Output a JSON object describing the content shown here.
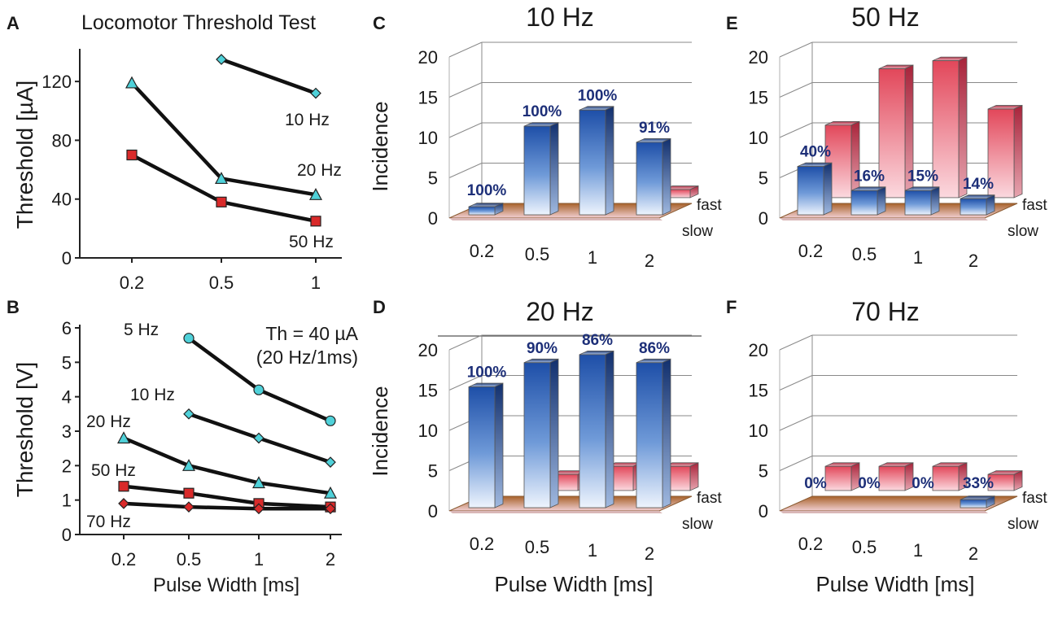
{
  "chart_data": [
    {
      "panel": "A",
      "type": "line",
      "title": "Locomotor Threshold Test",
      "xlabel": "",
      "ylabel": "Threshold [µA]",
      "categories": [
        "0.2",
        "0.5",
        "1"
      ],
      "yticks": [
        "0",
        "40",
        "80",
        "120"
      ],
      "ylim": [
        0,
        140
      ],
      "series": [
        {
          "name": "10 Hz",
          "marker": "diamond",
          "color": "#4fd1d9",
          "values": [
            null,
            135,
            112
          ]
        },
        {
          "name": "20 Hz",
          "marker": "triangle",
          "color": "#4fd1d9",
          "values": [
            119,
            54,
            43
          ]
        },
        {
          "name": "50 Hz",
          "marker": "square",
          "color": "#d92a2a",
          "values": [
            70,
            38,
            25
          ]
        }
      ]
    },
    {
      "panel": "B",
      "type": "line",
      "title": "",
      "xlabel": "Pulse Width [ms]",
      "ylabel": "Threshold [V]",
      "annotation": [
        "Th = 40 µA",
        "(20 Hz/1ms)"
      ],
      "categories": [
        "0.2",
        "0.5",
        "1",
        "2"
      ],
      "yticks": [
        "0",
        "1",
        "2",
        "3",
        "4",
        "5",
        "6"
      ],
      "ylim": [
        0,
        6
      ],
      "series": [
        {
          "name": "5 Hz",
          "marker": "circle",
          "color": "#4fd1d9",
          "values": [
            null,
            5.7,
            4.2,
            3.3
          ]
        },
        {
          "name": "10 Hz",
          "marker": "diamond",
          "color": "#4fd1d9",
          "values": [
            null,
            3.5,
            2.8,
            2.1
          ]
        },
        {
          "name": "20 Hz",
          "marker": "triangle",
          "color": "#4fd1d9",
          "values": [
            2.8,
            2.0,
            1.5,
            1.2
          ]
        },
        {
          "name": "50 Hz",
          "marker": "square",
          "color": "#d92a2a",
          "values": [
            1.4,
            1.2,
            0.9,
            0.8
          ]
        },
        {
          "name": "70 Hz",
          "marker": "diamond",
          "color": "#d92a2a",
          "values": [
            0.9,
            0.8,
            0.75,
            0.75
          ]
        }
      ]
    },
    {
      "panel": "C",
      "type": "bar",
      "title": "10 Hz",
      "xlabel": "",
      "ylabel": "Incidence",
      "categories": [
        "0.2",
        "0.5",
        "1",
        "2"
      ],
      "yticks": [
        "0",
        "5",
        "10",
        "15",
        "20"
      ],
      "ylim": [
        0,
        20
      ],
      "depth_labels": [
        "fast",
        "slow"
      ],
      "series": [
        {
          "name": "slow",
          "values": [
            1,
            11,
            13,
            9
          ]
        },
        {
          "name": "fast",
          "values": [
            0,
            0,
            0,
            1
          ]
        }
      ],
      "percent_labels": [
        "100%",
        "100%",
        "100%",
        "91%"
      ]
    },
    {
      "panel": "D",
      "type": "bar",
      "title": "20 Hz",
      "xlabel": "Pulse Width [ms]",
      "ylabel": "Incidence",
      "categories": [
        "0.2",
        "0.5",
        "1",
        "2"
      ],
      "yticks": [
        "0",
        "5",
        "10",
        "15",
        "20"
      ],
      "ylim": [
        0,
        20
      ],
      "depth_labels": [
        "fast",
        "slow"
      ],
      "series": [
        {
          "name": "slow",
          "values": [
            15,
            18,
            19,
            18
          ]
        },
        {
          "name": "fast",
          "values": [
            0,
            2,
            3,
            3
          ]
        }
      ],
      "percent_labels": [
        "100%",
        "90%",
        "86%",
        "86%"
      ]
    },
    {
      "panel": "E",
      "type": "bar",
      "title": "50 Hz",
      "xlabel": "",
      "ylabel": "",
      "categories": [
        "0.2",
        "0.5",
        "1",
        "2"
      ],
      "yticks": [
        "0",
        "5",
        "10",
        "15",
        "20"
      ],
      "ylim": [
        0,
        20
      ],
      "depth_labels": [
        "fast",
        "slow"
      ],
      "series": [
        {
          "name": "slow",
          "values": [
            6,
            3,
            3,
            2
          ]
        },
        {
          "name": "fast",
          "values": [
            9,
            16,
            17,
            11
          ]
        }
      ],
      "percent_labels": [
        "40%",
        "16%",
        "15%",
        "14%"
      ]
    },
    {
      "panel": "F",
      "type": "bar",
      "title": "70 Hz",
      "xlabel": "Pulse Width [ms]",
      "ylabel": "",
      "categories": [
        "0.2",
        "0.5",
        "1",
        "2"
      ],
      "yticks": [
        "0",
        "5",
        "10",
        "15",
        "20"
      ],
      "ylim": [
        0,
        20
      ],
      "depth_labels": [
        "fast",
        "slow"
      ],
      "series": [
        {
          "name": "slow",
          "values": [
            0,
            0,
            0,
            1
          ]
        },
        {
          "name": "fast",
          "values": [
            3,
            3,
            3,
            2
          ]
        }
      ],
      "percent_labels": [
        "0%",
        "0%",
        "0%",
        "33%"
      ]
    }
  ]
}
